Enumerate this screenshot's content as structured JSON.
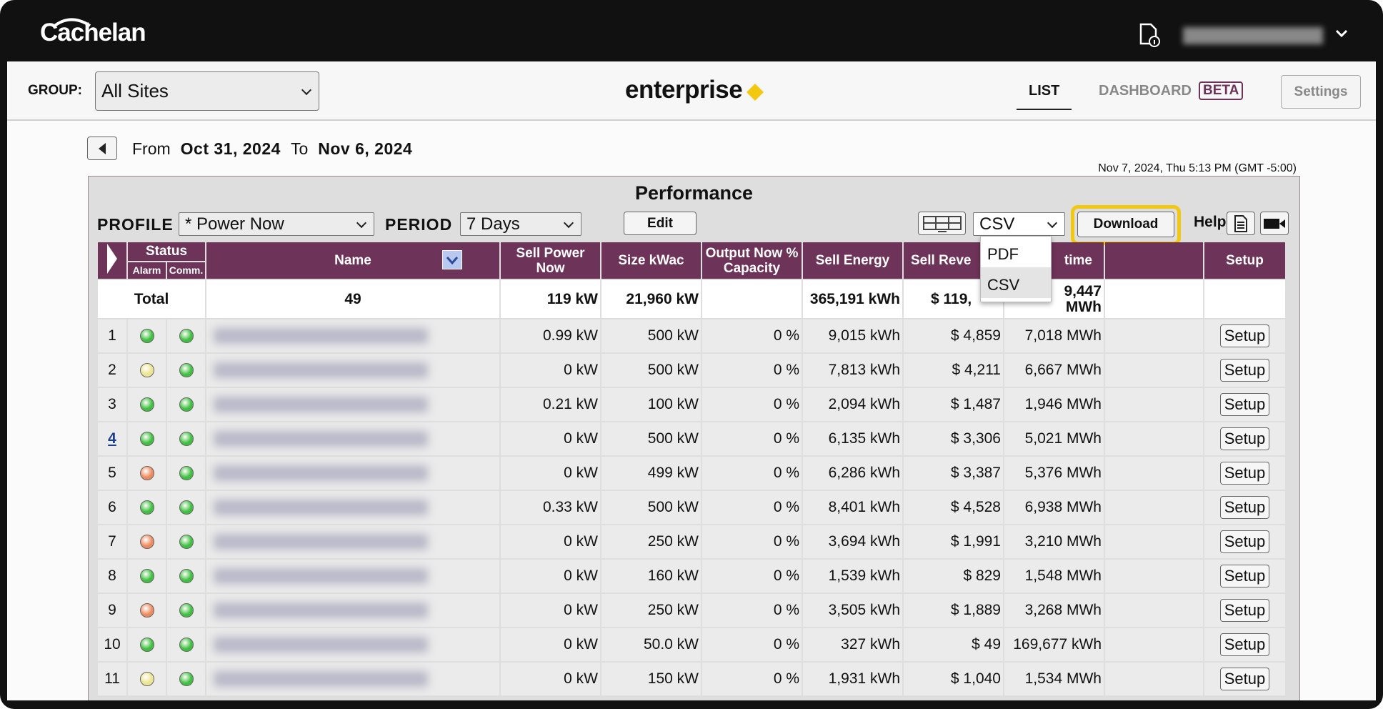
{
  "header": {
    "logo": "Cachelan"
  },
  "toolbar": {
    "group_label": "GROUP:",
    "group": "All Sites",
    "brand": "enterprise",
    "tabs": [
      "LIST",
      "DASHBOARD"
    ],
    "beta": "BETA",
    "settings": "Settings"
  },
  "range": {
    "from_label": "From",
    "from": "Oct 31, 2024",
    "to_label": "To",
    "to": "Nov 6, 2024",
    "timestamp": "Nov 7, 2024, Thu 5:13 PM (GMT -5:00)"
  },
  "panel": {
    "title": "Performance",
    "profile_label": "PROFILE",
    "profile": "* Power Now",
    "period_label": "PERIOD",
    "period": "7 Days",
    "edit": "Edit",
    "format": "CSV",
    "format_options": [
      "PDF",
      "CSV"
    ],
    "download": "Download",
    "help": "Help"
  },
  "table": {
    "columns": {
      "status": "Status",
      "alarm": "Alarm",
      "comm": "Comm.",
      "name": "Name",
      "sell_power": "Sell Power Now",
      "size": "Size kWac",
      "output": "Output Now % Capacity",
      "energy": "Sell Energy",
      "revenue": "Sell Reve",
      "lifetime": "time",
      "setup": "Setup"
    },
    "total": {
      "label": "Total",
      "count": "49",
      "sell_power": "119 kW",
      "size": "21,960 kW",
      "energy": "365,191 kWh",
      "revenue": "$ 119,",
      "lifetime": "9,447 MWh"
    },
    "setup_button": "Setup",
    "rows": [
      {
        "n": "1",
        "alarm": "#3fbf3f",
        "comm": "#3fbf3f",
        "sell_power": "0.99 kW",
        "size": "500 kW",
        "output": "0 %",
        "energy": "9,015 kWh",
        "revenue": "$ 4,859",
        "lifetime": "7,018 MWh"
      },
      {
        "n": "2",
        "alarm": "#ece48e",
        "comm": "#3fbf3f",
        "sell_power": "0 kW",
        "size": "500 kW",
        "output": "0 %",
        "energy": "7,813 kWh",
        "revenue": "$ 4,211",
        "lifetime": "6,667 MWh"
      },
      {
        "n": "3",
        "alarm": "#3fbf3f",
        "comm": "#3fbf3f",
        "sell_power": "0.21 kW",
        "size": "100 kW",
        "output": "0 %",
        "energy": "2,094 kWh",
        "revenue": "$ 1,487",
        "lifetime": "1,946 MWh"
      },
      {
        "n": "4",
        "link": true,
        "alarm": "#3fbf3f",
        "comm": "#3fbf3f",
        "sell_power": "0 kW",
        "size": "500 kW",
        "output": "0 %",
        "energy": "6,135 kWh",
        "revenue": "$ 3,306",
        "lifetime": "5,021 MWh"
      },
      {
        "n": "5",
        "alarm": "#ec8a5e",
        "comm": "#3fbf3f",
        "sell_power": "0 kW",
        "size": "499 kW",
        "output": "0 %",
        "energy": "6,286 kWh",
        "revenue": "$ 3,387",
        "lifetime": "5,376 MWh"
      },
      {
        "n": "6",
        "alarm": "#3fbf3f",
        "comm": "#3fbf3f",
        "sell_power": "0.33 kW",
        "size": "500 kW",
        "output": "0 %",
        "energy": "8,401 kWh",
        "revenue": "$ 4,528",
        "lifetime": "6,938 MWh"
      },
      {
        "n": "7",
        "alarm": "#ec8a5e",
        "comm": "#3fbf3f",
        "sell_power": "0 kW",
        "size": "250 kW",
        "output": "0 %",
        "energy": "3,694 kWh",
        "revenue": "$ 1,991",
        "lifetime": "3,210 MWh"
      },
      {
        "n": "8",
        "alarm": "#3fbf3f",
        "comm": "#3fbf3f",
        "sell_power": "0 kW",
        "size": "160 kW",
        "output": "0 %",
        "energy": "1,539 kWh",
        "revenue": "$ 829",
        "lifetime": "1,548 MWh"
      },
      {
        "n": "9",
        "alarm": "#ec8a5e",
        "comm": "#3fbf3f",
        "sell_power": "0 kW",
        "size": "250 kW",
        "output": "0 %",
        "energy": "3,505 kWh",
        "revenue": "$ 1,889",
        "lifetime": "3,268 MWh"
      },
      {
        "n": "10",
        "alarm": "#3fbf3f",
        "comm": "#3fbf3f",
        "sell_power": "0 kW",
        "size": "50.0 kW",
        "output": "0 %",
        "energy": "327 kWh",
        "revenue": "$ 49",
        "lifetime": "169,677 kWh"
      },
      {
        "n": "11",
        "alarm": "#ece48e",
        "comm": "#3fbf3f",
        "sell_power": "0 kW",
        "size": "150 kW",
        "output": "0 %",
        "energy": "1,931 kWh",
        "revenue": "$ 1,040",
        "lifetime": "1,534 MWh"
      }
    ]
  }
}
